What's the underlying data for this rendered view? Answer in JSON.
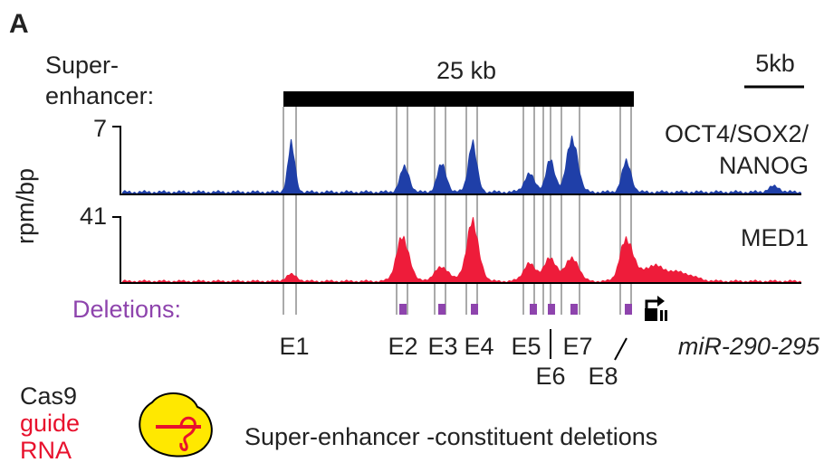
{
  "panel": "A",
  "super_enhancer_label": [
    "Super-",
    "enhancer:"
  ],
  "span_label": "25 kb",
  "scale_label": "5kb",
  "y_axis_label": "rpm/bp",
  "tracks": [
    {
      "name_lines": [
        "OCT4/SOX2/",
        "NANOG"
      ],
      "max_tick": 7
    },
    {
      "name_lines": [
        "MED1"
      ],
      "max_tick": 41
    }
  ],
  "deletions_label": "Deletions:",
  "constituents": [
    "E1",
    "E2",
    "E3",
    "E4",
    "E5",
    "E6",
    "E7",
    "E8"
  ],
  "gene": "miR-290-295",
  "legend": {
    "cas9": "Cas9",
    "guide_rna": [
      "guide",
      "RNA"
    ],
    "caption": "Super-enhancer -constituent deletions"
  }
}
